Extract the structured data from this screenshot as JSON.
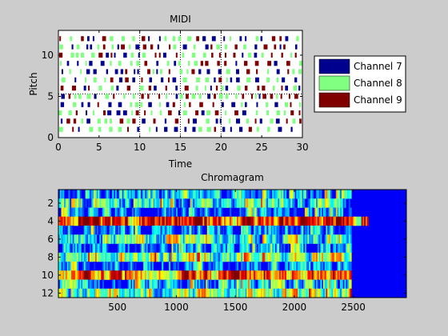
{
  "chart_data": [
    {
      "type": "scatter",
      "title": "MIDI",
      "xlabel": "Time",
      "ylabel": "Pitch",
      "xlim": [
        0,
        30
      ],
      "ylim": [
        0,
        13
      ],
      "xticks": [
        "0",
        "5",
        "10",
        "15",
        "20",
        "25",
        "30"
      ],
      "yticks": [
        "0",
        "5",
        "10"
      ],
      "grid": false,
      "legend_position": "right",
      "series": [
        {
          "name": "Channel 7",
          "color": "#00008f"
        },
        {
          "name": "Channel 8",
          "color": "#80ff80"
        },
        {
          "name": "Channel 9",
          "color": "#800000"
        }
      ],
      "tempo_lines_x": [
        10,
        15,
        20
      ],
      "pitches": [
        1,
        2,
        3,
        4,
        5,
        6,
        7,
        8,
        9,
        10,
        11,
        12
      ],
      "note_seed": 7
    },
    {
      "type": "heatmap",
      "title": "Chromagram",
      "xlabel": "",
      "ylabel": "",
      "xlim": [
        0,
        2950
      ],
      "ylim": [
        12.5,
        0.5
      ],
      "xticks": [
        "500",
        "1000",
        "1500",
        "2000",
        "2500"
      ],
      "yticks": [
        "2",
        "4",
        "6",
        "8",
        "10",
        "12"
      ],
      "colormap": "jet",
      "rows": 12,
      "active_until": 2480,
      "row_strength": [
        0.25,
        0.35,
        0.2,
        0.8,
        0.2,
        0.4,
        0.25,
        0.45,
        0.2,
        0.7,
        0.3,
        0.45
      ]
    }
  ]
}
